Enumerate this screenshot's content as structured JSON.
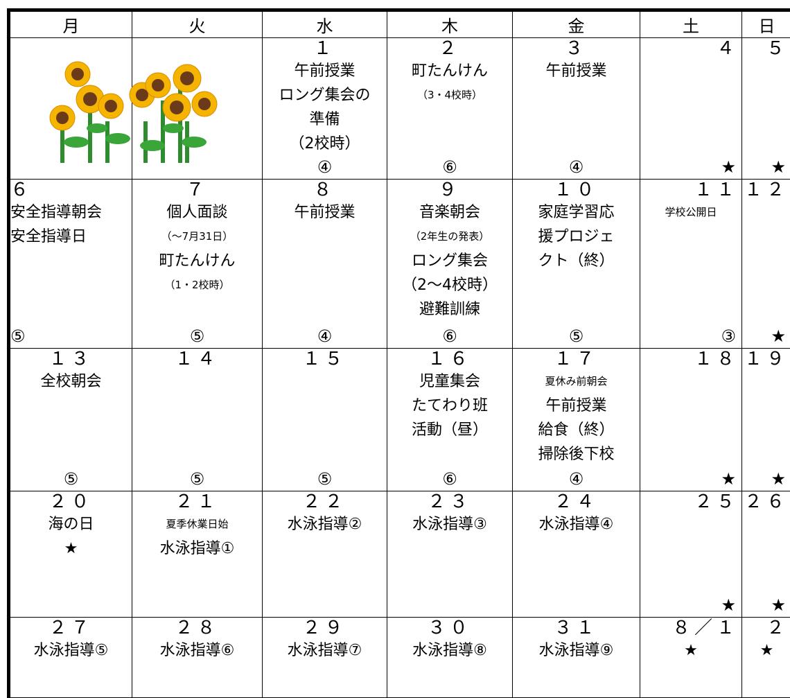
{
  "table": {
    "header": [
      "月",
      "火",
      "水",
      "木",
      "金",
      "土",
      "日"
    ],
    "rows": [
      [
        {
          "lines": []
        },
        {
          "lines": []
        },
        {
          "date": "１",
          "lines": [
            {
              "text": "午前授業"
            },
            {
              "text": "ロング集会の"
            },
            {
              "text": "準備"
            },
            {
              "text": "（2校時）"
            }
          ],
          "bottom": "④"
        },
        {
          "date": "２",
          "lines": [
            {
              "text": "町たんけん"
            },
            {
              "text": "（3・4校時）",
              "small": true
            }
          ],
          "bottom": "⑥"
        },
        {
          "date": "３",
          "lines": [
            {
              "text": "午前授業"
            }
          ],
          "bottom": "④"
        },
        {
          "date": "４",
          "lines": [],
          "bottom": "★"
        },
        {
          "date": "５",
          "lines": [],
          "bottom": "★"
        }
      ],
      [
        {
          "date": "６",
          "lines": [
            {
              "text": "安全指導朝会"
            },
            {
              "text": "安全指導日"
            }
          ],
          "bottom": "⑤",
          "align": "left"
        },
        {
          "date": "７",
          "lines": [
            {
              "text": "個人面談"
            },
            {
              "text": "（～7月31日）",
              "small": true
            },
            {
              "text": "町たんけん"
            },
            {
              "text": "（1・2校時）",
              "small": true
            }
          ],
          "bottom": "⑤"
        },
        {
          "date": "８",
          "lines": [
            {
              "text": "午前授業"
            }
          ],
          "bottom": "④"
        },
        {
          "date": "９",
          "lines": [
            {
              "text": "音楽朝会"
            },
            {
              "text": "（2年生の発表）",
              "small": true
            },
            {
              "text": "ロング集会"
            },
            {
              "text": "（2～4校時）"
            },
            {
              "text": "避難訓練"
            }
          ],
          "bottom": "⑥"
        },
        {
          "date": "１０",
          "lines": [
            {
              "text": "家庭学習応"
            },
            {
              "text": "援プロジェ"
            },
            {
              "text": "クト（終）"
            }
          ],
          "bottom": "⑤"
        },
        {
          "date": "１１",
          "lines": [
            {
              "text": "学校公開日",
              "small": true
            }
          ],
          "bottom": "③"
        },
        {
          "date": "１２",
          "lines": [],
          "bottom": "★"
        }
      ],
      [
        {
          "date": "１３",
          "lines": [
            {
              "text": "全校朝会"
            }
          ],
          "bottom": "⑤"
        },
        {
          "date": "１４",
          "lines": [],
          "bottom": "⑤"
        },
        {
          "date": "１５",
          "lines": [],
          "bottom": "⑤"
        },
        {
          "date": "１６",
          "lines": [
            {
              "text": "児童集会"
            },
            {
              "text": "たてわり班"
            },
            {
              "text": "活動（昼）"
            }
          ],
          "bottom": "⑥"
        },
        {
          "date": "１７",
          "lines": [
            {
              "text": "夏休み前朝会",
              "small": true
            },
            {
              "text": "午前授業"
            },
            {
              "text": "給食（終）"
            },
            {
              "text": "掃除後下校"
            }
          ],
          "bottom": "④"
        },
        {
          "date": "１８",
          "lines": [],
          "bottom": "★"
        },
        {
          "date": "１９",
          "lines": [],
          "bottom": "★"
        }
      ],
      [
        {
          "date": "２０",
          "lines": [
            {
              "text": "海の日"
            },
            {
              "text": "★"
            }
          ]
        },
        {
          "date": "２１",
          "lines": [
            {
              "text": "夏季休業日始",
              "small": true
            },
            {
              "text": "水泳指導①"
            }
          ]
        },
        {
          "date": "２２",
          "lines": [
            {
              "text": "水泳指導②"
            }
          ]
        },
        {
          "date": "２３",
          "lines": [
            {
              "text": "水泳指導③"
            }
          ]
        },
        {
          "date": "２４",
          "lines": [
            {
              "text": "水泳指導④"
            }
          ]
        },
        {
          "date": "２５",
          "lines": [],
          "bottom": "★"
        },
        {
          "date": "２６",
          "lines": [],
          "bottom": "★"
        }
      ],
      [
        {
          "date": "２７",
          "lines": [
            {
              "text": "水泳指導⑤"
            }
          ]
        },
        {
          "date": "２８",
          "lines": [
            {
              "text": "水泳指導⑥"
            }
          ]
        },
        {
          "date": "２９",
          "lines": [
            {
              "text": "水泳指導⑦"
            }
          ]
        },
        {
          "date": "３０",
          "lines": [
            {
              "text": "水泳指導⑧"
            }
          ]
        },
        {
          "date": "３１",
          "lines": [
            {
              "text": "水泳指導⑨"
            }
          ]
        },
        {
          "date": "８／１",
          "lines": [
            {
              "text": "★"
            }
          ]
        },
        {
          "date": "２",
          "lines": [
            {
              "text": "★"
            }
          ]
        }
      ]
    ]
  }
}
